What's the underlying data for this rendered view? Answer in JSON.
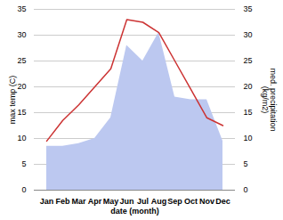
{
  "chart_data": {
    "type": "line",
    "categories": [
      "Jan",
      "Feb",
      "Mar",
      "Apr",
      "May",
      "Jun",
      "Jul",
      "Aug",
      "Sep",
      "Oct",
      "Nov",
      "Dec"
    ],
    "xlabel": "date (month)",
    "ylabel": "max temp (C)",
    "y2label": "med. precipitation\n(kg/m2)",
    "series": [
      {
        "type": "area",
        "axis": "y2",
        "color": "#bcc8f0",
        "values": [
          8.5,
          8.5,
          9.0,
          10.0,
          14.0,
          28.0,
          25.0,
          30.5,
          18.0,
          17.5,
          17.5,
          9.5
        ]
      },
      {
        "type": "line",
        "color": "#cc3333",
        "values": [
          9.5,
          13.5,
          16.5,
          20.0,
          23.5,
          33.0,
          32.5,
          30.5,
          25.0,
          19.5,
          14.0,
          12.5
        ]
      }
    ],
    "ylim": [
      0,
      35
    ],
    "yticks": [
      0,
      5,
      10,
      15,
      20,
      25,
      30,
      35
    ],
    "y2lim": [
      0,
      35
    ],
    "y2ticks": [
      0,
      5,
      10,
      15,
      20,
      25,
      30,
      35
    ],
    "grid": true
  }
}
